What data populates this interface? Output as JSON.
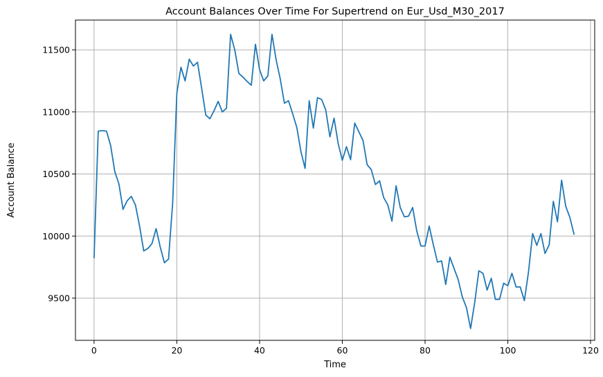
{
  "chart_data": {
    "type": "line",
    "title": "Account Balances Over Time For Supertrend on Eur_Usd_M30_2017",
    "xlabel": "Time",
    "ylabel": "Account Balance",
    "xlim": [
      -4.5,
      121
    ],
    "ylim": [
      9160,
      11740
    ],
    "xticks": [
      0,
      20,
      40,
      60,
      80,
      100,
      120
    ],
    "yticks": [
      9500,
      10000,
      10500,
      11000,
      11500
    ],
    "xtick_labels": [
      "0",
      "20",
      "40",
      "60",
      "80",
      "100",
      "120"
    ],
    "ytick_labels": [
      "9500",
      "10000",
      "10500",
      "11000",
      "11500"
    ],
    "grid": true,
    "legend": "none",
    "series": [
      {
        "color": "#1f77b4",
        "x": [
          0,
          1,
          2,
          3,
          4,
          5,
          6,
          7,
          8,
          9,
          10,
          11,
          12,
          13,
          14,
          15,
          16,
          17,
          18,
          19,
          20,
          21,
          22,
          23,
          24,
          25,
          26,
          27,
          28,
          29,
          30,
          31,
          32,
          33,
          34,
          35,
          36,
          37,
          38,
          39,
          40,
          41,
          42,
          43,
          44,
          45,
          46,
          47,
          48,
          49,
          50,
          51,
          52,
          53,
          54,
          55,
          56,
          57,
          58,
          59,
          60,
          61,
          62,
          63,
          64,
          65,
          66,
          67,
          68,
          69,
          70,
          71,
          72,
          73,
          74,
          75,
          76,
          77,
          78,
          79,
          80,
          81,
          82,
          83,
          84,
          85,
          86,
          87,
          88,
          89,
          90,
          91,
          92,
          93,
          94,
          95,
          96,
          97,
          98,
          99,
          100,
          101,
          102,
          103,
          104,
          105,
          106,
          107,
          108,
          109,
          110,
          111,
          112,
          113,
          114,
          115,
          116
        ],
        "values": [
          9825,
          10845,
          10850,
          10845,
          10730,
          10520,
          10420,
          10215,
          10285,
          10320,
          10250,
          10080,
          9880,
          9900,
          9940,
          10060,
          9910,
          9785,
          9815,
          10270,
          11150,
          11360,
          11250,
          11425,
          11370,
          11400,
          11190,
          10975,
          10945,
          11010,
          11085,
          11000,
          11030,
          11625,
          11500,
          11310,
          11280,
          11245,
          11215,
          11545,
          11340,
          11250,
          11290,
          11625,
          11420,
          11265,
          11070,
          11090,
          10985,
          10875,
          10680,
          10545,
          11090,
          10870,
          11115,
          11100,
          11015,
          10800,
          10950,
          10745,
          10610,
          10720,
          10615,
          10910,
          10840,
          10770,
          10575,
          10535,
          10415,
          10445,
          10310,
          10250,
          10120,
          10405,
          10230,
          10155,
          10160,
          10230,
          10040,
          9920,
          9920,
          10080,
          9930,
          9790,
          9800,
          9610,
          9830,
          9740,
          9650,
          9510,
          9425,
          9255,
          9465,
          9720,
          9700,
          9565,
          9660,
          9490,
          9490,
          9620,
          9600,
          9700,
          9590,
          9590,
          9480,
          9710,
          10020,
          9925,
          10020,
          9860,
          9930,
          10280,
          10115,
          10450,
          10240,
          10150,
          10015
        ]
      }
    ]
  }
}
